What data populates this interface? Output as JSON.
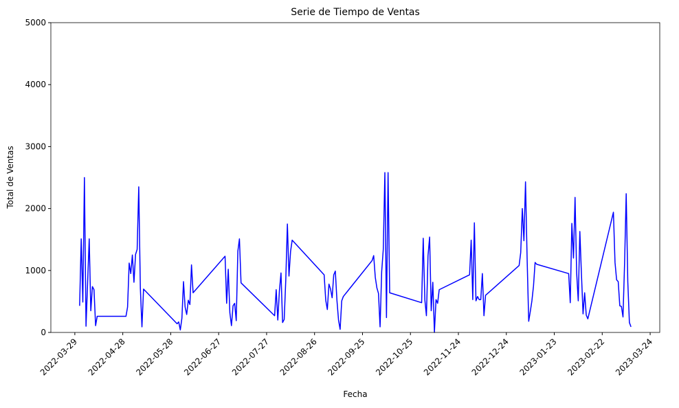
{
  "chart_data": {
    "type": "line",
    "title": "Serie de Tiempo de Ventas",
    "x_label": "Fecha",
    "y_label": "Total de Ventas",
    "x": [
      "2022-04-01",
      "2022-04-02",
      "2022-04-03",
      "2022-04-04",
      "2022-04-05",
      "2022-04-07",
      "2022-04-08",
      "2022-04-09",
      "2022-04-10",
      "2022-04-11",
      "2022-04-12",
      "2022-04-30",
      "2022-05-01",
      "2022-05-02",
      "2022-05-03",
      "2022-05-04",
      "2022-05-05",
      "2022-05-06",
      "2022-05-07",
      "2022-05-08",
      "2022-05-09",
      "2022-05-10",
      "2022-05-11",
      "2022-06-01",
      "2022-06-02",
      "2022-06-03",
      "2022-06-04",
      "2022-06-05",
      "2022-06-06",
      "2022-06-07",
      "2022-06-08",
      "2022-06-09",
      "2022-06-10",
      "2022-06-11",
      "2022-07-01",
      "2022-07-02",
      "2022-07-03",
      "2022-07-04",
      "2022-07-05",
      "2022-07-06",
      "2022-07-07",
      "2022-07-08",
      "2022-07-09",
      "2022-07-10",
      "2022-07-11",
      "2022-08-01",
      "2022-08-02",
      "2022-08-03",
      "2022-08-04",
      "2022-08-05",
      "2022-08-06",
      "2022-08-07",
      "2022-08-08",
      "2022-08-09",
      "2022-08-10",
      "2022-08-11",
      "2022-08-12",
      "2022-09-01",
      "2022-09-02",
      "2022-09-03",
      "2022-09-04",
      "2022-09-05",
      "2022-09-06",
      "2022-09-07",
      "2022-09-08",
      "2022-09-09",
      "2022-09-10",
      "2022-09-11",
      "2022-09-12",
      "2022-09-13",
      "2022-10-01",
      "2022-10-02",
      "2022-10-03",
      "2022-10-04",
      "2022-10-05",
      "2022-10-06",
      "2022-10-07",
      "2022-10-08",
      "2022-10-09",
      "2022-10-10",
      "2022-10-11",
      "2022-10-12",
      "2022-11-01",
      "2022-11-02",
      "2022-11-03",
      "2022-11-04",
      "2022-11-05",
      "2022-11-06",
      "2022-11-07",
      "2022-11-08",
      "2022-11-09",
      "2022-11-10",
      "2022-11-11",
      "2022-11-12",
      "2022-12-01",
      "2022-12-02",
      "2022-12-03",
      "2022-12-04",
      "2022-12-05",
      "2022-12-06",
      "2022-12-07",
      "2022-12-08",
      "2022-12-09",
      "2022-12-10",
      "2022-12-11",
      "2023-01-01",
      "2023-01-02",
      "2023-01-03",
      "2023-01-04",
      "2023-01-05",
      "2023-01-06",
      "2023-01-07",
      "2023-01-08",
      "2023-01-09",
      "2023-01-10",
      "2023-01-11",
      "2023-01-12",
      "2023-02-01",
      "2023-02-02",
      "2023-02-03",
      "2023-02-04",
      "2023-02-05",
      "2023-02-06",
      "2023-02-07",
      "2023-02-08",
      "2023-02-09",
      "2023-02-10",
      "2023-02-11",
      "2023-02-12",
      "2023-02-13",
      "2023-03-01",
      "2023-03-02",
      "2023-03-03",
      "2023-03-04",
      "2023-03-05",
      "2023-03-06",
      "2023-03-07",
      "2023-03-08",
      "2023-03-09",
      "2023-03-10",
      "2023-03-11",
      "2023-03-12"
    ],
    "series": [
      {
        "color": "#0000ff",
        "values": [
          430,
          1510,
          490,
          2500,
          100,
          1510,
          350,
          740,
          690,
          110,
          260,
          260,
          410,
          1120,
          950,
          1250,
          810,
          1260,
          1340,
          2350,
          710,
          90,
          700,
          140,
          170,
          40,
          230,
          820,
          410,
          290,
          520,
          450,
          1090,
          640,
          1230,
          470,
          1020,
          320,
          110,
          430,
          470,
          190,
          1310,
          1510,
          800,
          270,
          690,
          200,
          670,
          960,
          160,
          210,
          850,
          1750,
          910,
          1310,
          1490,
          930,
          520,
          370,
          780,
          700,
          560,
          930,
          990,
          520,
          200,
          50,
          510,
          580,
          1160,
          1240,
          890,
          720,
          630,
          90,
          980,
          1340,
          2580,
          240,
          2580,
          640,
          480,
          1520,
          530,
          270,
          1240,
          1540,
          350,
          810,
          0,
          530,
          470,
          690,
          930,
          1490,
          530,
          1770,
          510,
          580,
          530,
          530,
          950,
          270,
          600,
          1080,
          1290,
          2000,
          1480,
          2430,
          1200,
          180,
          340,
          510,
          750,
          1130,
          1100,
          950,
          480,
          1760,
          1200,
          2180,
          960,
          510,
          1630,
          940,
          300,
          640,
          280,
          220,
          1940,
          1130,
          850,
          820,
          430,
          420,
          250,
          1120,
          2240,
          820,
          160,
          90
        ]
      }
    ],
    "xlim": [
      "2022-03-14",
      "2023-03-30"
    ],
    "xticks": [
      "2022-03-29",
      "2022-04-28",
      "2022-05-28",
      "2022-06-27",
      "2022-07-27",
      "2022-08-26",
      "2022-09-25",
      "2022-10-25",
      "2022-11-24",
      "2022-12-24",
      "2023-01-23",
      "2023-02-22",
      "2023-03-24"
    ],
    "ylim": [
      0,
      5000
    ],
    "yticks": [
      0,
      1000,
      2000,
      3000,
      4000,
      5000
    ],
    "grid": false
  }
}
